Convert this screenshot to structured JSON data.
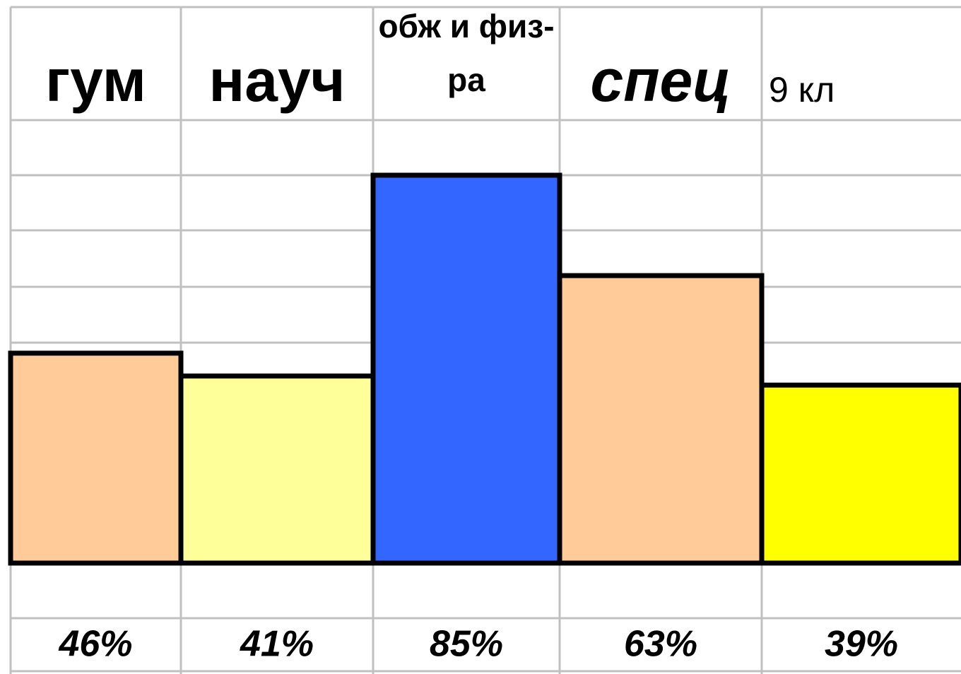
{
  "chart_data": {
    "type": "bar",
    "categories": [
      "гум",
      "науч",
      "обж и физ-ра",
      "спец",
      "9 кл"
    ],
    "values": [
      46,
      41,
      85,
      63,
      39
    ],
    "value_labels": [
      "46%",
      "41%",
      "85%",
      "63%",
      "39%"
    ],
    "colors": [
      "#ffcc99",
      "#ffff99",
      "#3366ff",
      "#ffcc99",
      "#ffff00"
    ]
  }
}
